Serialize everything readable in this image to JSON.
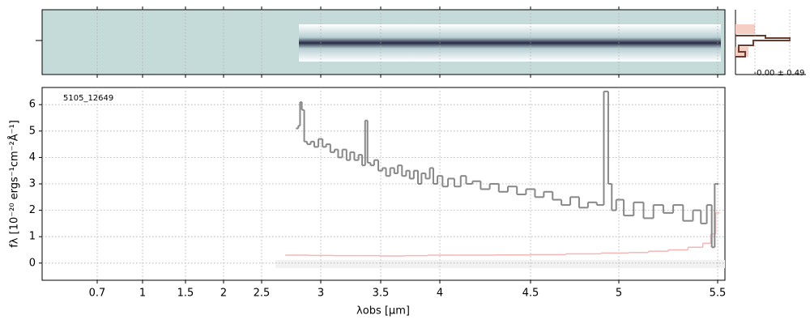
{
  "chart_data": {
    "type": "line",
    "label": "5105_12649",
    "xlabel": "λobs [μm]",
    "ylabel": "fλ [10⁻²⁰ ergs⁻¹cm⁻²Å⁻¹]",
    "profile_label": "-0.00 ± 0.49",
    "xlim": [
      0.34,
      5.54
    ],
    "xticks": [
      0.7,
      1.0,
      1.5,
      2.0,
      2.5,
      3.0,
      3.5,
      4.0,
      4.5,
      5.0,
      5.5
    ],
    "ylim": [
      -0.65,
      6.65
    ],
    "yticks": [
      0,
      1,
      2,
      3,
      4,
      5,
      6
    ],
    "grid": true,
    "series": [
      {
        "name": "flux",
        "color": "#888888",
        "x": [
          2.8,
          2.82,
          2.83,
          2.85,
          2.87,
          2.9,
          2.93,
          2.96,
          3.0,
          3.03,
          3.06,
          3.1,
          3.13,
          3.16,
          3.2,
          3.23,
          3.26,
          3.3,
          3.33,
          3.36,
          3.38,
          3.4,
          3.43,
          3.46,
          3.5,
          3.53,
          3.56,
          3.6,
          3.63,
          3.66,
          3.7,
          3.73,
          3.76,
          3.8,
          3.83,
          3.86,
          3.9,
          3.93,
          3.96,
          4.0,
          4.03,
          4.06,
          4.1,
          4.13,
          4.16,
          4.2,
          4.25,
          4.3,
          4.35,
          4.4,
          4.45,
          4.5,
          4.55,
          4.6,
          4.65,
          4.7,
          4.75,
          4.8,
          4.85,
          4.9,
          4.93,
          4.95,
          4.97,
          5.0,
          5.05,
          5.1,
          5.15,
          5.2,
          5.25,
          5.3,
          5.35,
          5.4,
          5.43,
          5.46,
          5.48,
          5.49,
          5.5
        ],
        "values": [
          5.1,
          5.2,
          6.1,
          5.8,
          4.6,
          4.5,
          4.6,
          4.4,
          4.7,
          4.4,
          4.5,
          4.2,
          4.3,
          4.0,
          4.3,
          3.9,
          4.2,
          3.9,
          4.1,
          3.7,
          5.4,
          3.8,
          3.7,
          3.9,
          3.5,
          3.6,
          3.3,
          3.6,
          3.4,
          3.7,
          3.3,
          3.5,
          3.2,
          3.5,
          3.0,
          3.4,
          3.2,
          3.6,
          3.0,
          3.3,
          2.9,
          3.2,
          2.9,
          3.3,
          3.0,
          3.1,
          2.8,
          3.0,
          2.7,
          2.9,
          2.6,
          2.8,
          2.5,
          2.7,
          2.4,
          2.2,
          2.5,
          2.1,
          2.3,
          2.2,
          6.5,
          3.0,
          2.0,
          2.4,
          1.8,
          2.3,
          1.7,
          2.2,
          1.9,
          2.2,
          1.6,
          2.0,
          1.5,
          2.2,
          0.6,
          3.0,
          3.0
        ]
      },
      {
        "name": "error",
        "color": "#f4b6b6",
        "x": [
          2.8,
          3.0,
          3.2,
          3.4,
          3.6,
          3.8,
          4.0,
          4.2,
          4.4,
          4.6,
          4.8,
          5.0,
          5.1,
          5.2,
          5.3,
          5.4,
          5.45,
          5.48,
          5.5
        ],
        "values": [
          0.3,
          0.29,
          0.28,
          0.28,
          0.27,
          0.28,
          0.3,
          0.3,
          0.31,
          0.32,
          0.35,
          0.38,
          0.4,
          0.45,
          0.5,
          0.6,
          0.75,
          1.1,
          1.9
        ]
      }
    ]
  }
}
